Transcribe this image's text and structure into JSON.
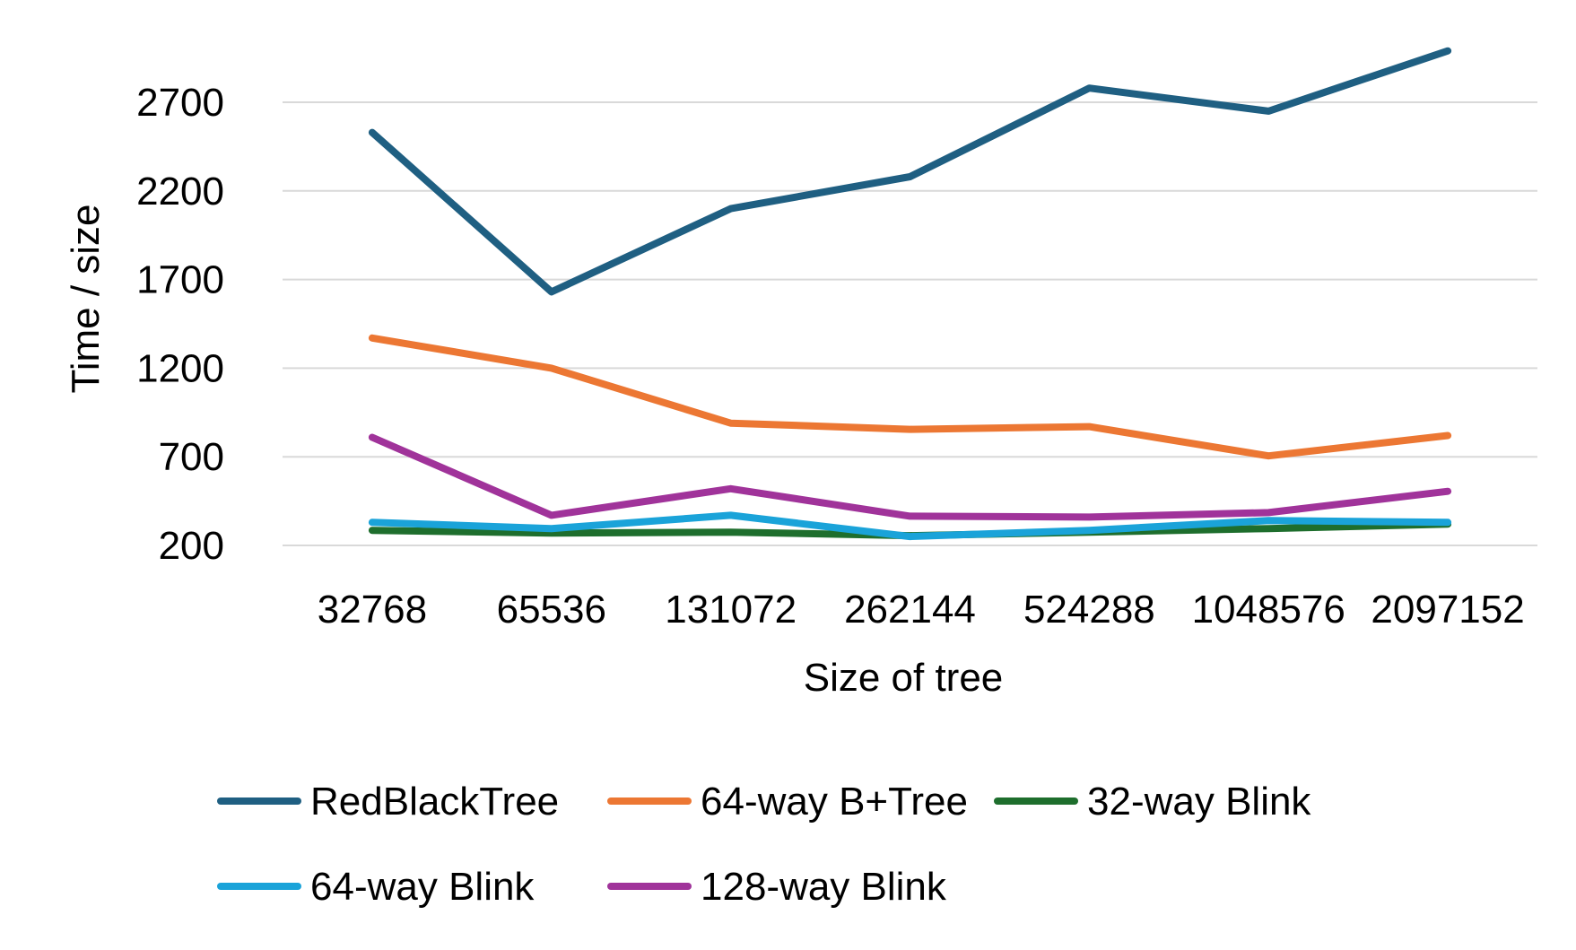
{
  "chart_data": {
    "type": "line",
    "title": "",
    "xlabel": "Size of tree",
    "ylabel": "Time  /  size",
    "categories": [
      "32768",
      "65536",
      "131072",
      "262144",
      "524288",
      "1048576",
      "2097152"
    ],
    "yticks": [
      200,
      700,
      1200,
      1700,
      2200,
      2700
    ],
    "ylim": [
      200,
      2980
    ],
    "grid": true,
    "legend_position": "bottom",
    "series": [
      {
        "name": "RedBlackTree",
        "color": "#1F5F82",
        "values": [
          2530,
          1630,
          2100,
          2280,
          2780,
          2650,
          2990
        ]
      },
      {
        "name": "64-way B+Tree",
        "color": "#EC7733",
        "values": [
          1370,
          1200,
          890,
          855,
          870,
          705,
          820
        ]
      },
      {
        "name": "32-way Blink",
        "color": "#1E6E2D",
        "values": [
          285,
          270,
          275,
          255,
          275,
          295,
          320
        ]
      },
      {
        "name": "64-way Blink",
        "color": "#1AA3D9",
        "values": [
          330,
          295,
          370,
          250,
          285,
          340,
          330
        ]
      },
      {
        "name": "128-way Blink",
        "color": "#A0339A",
        "values": [
          810,
          370,
          520,
          365,
          360,
          385,
          505
        ]
      }
    ]
  }
}
